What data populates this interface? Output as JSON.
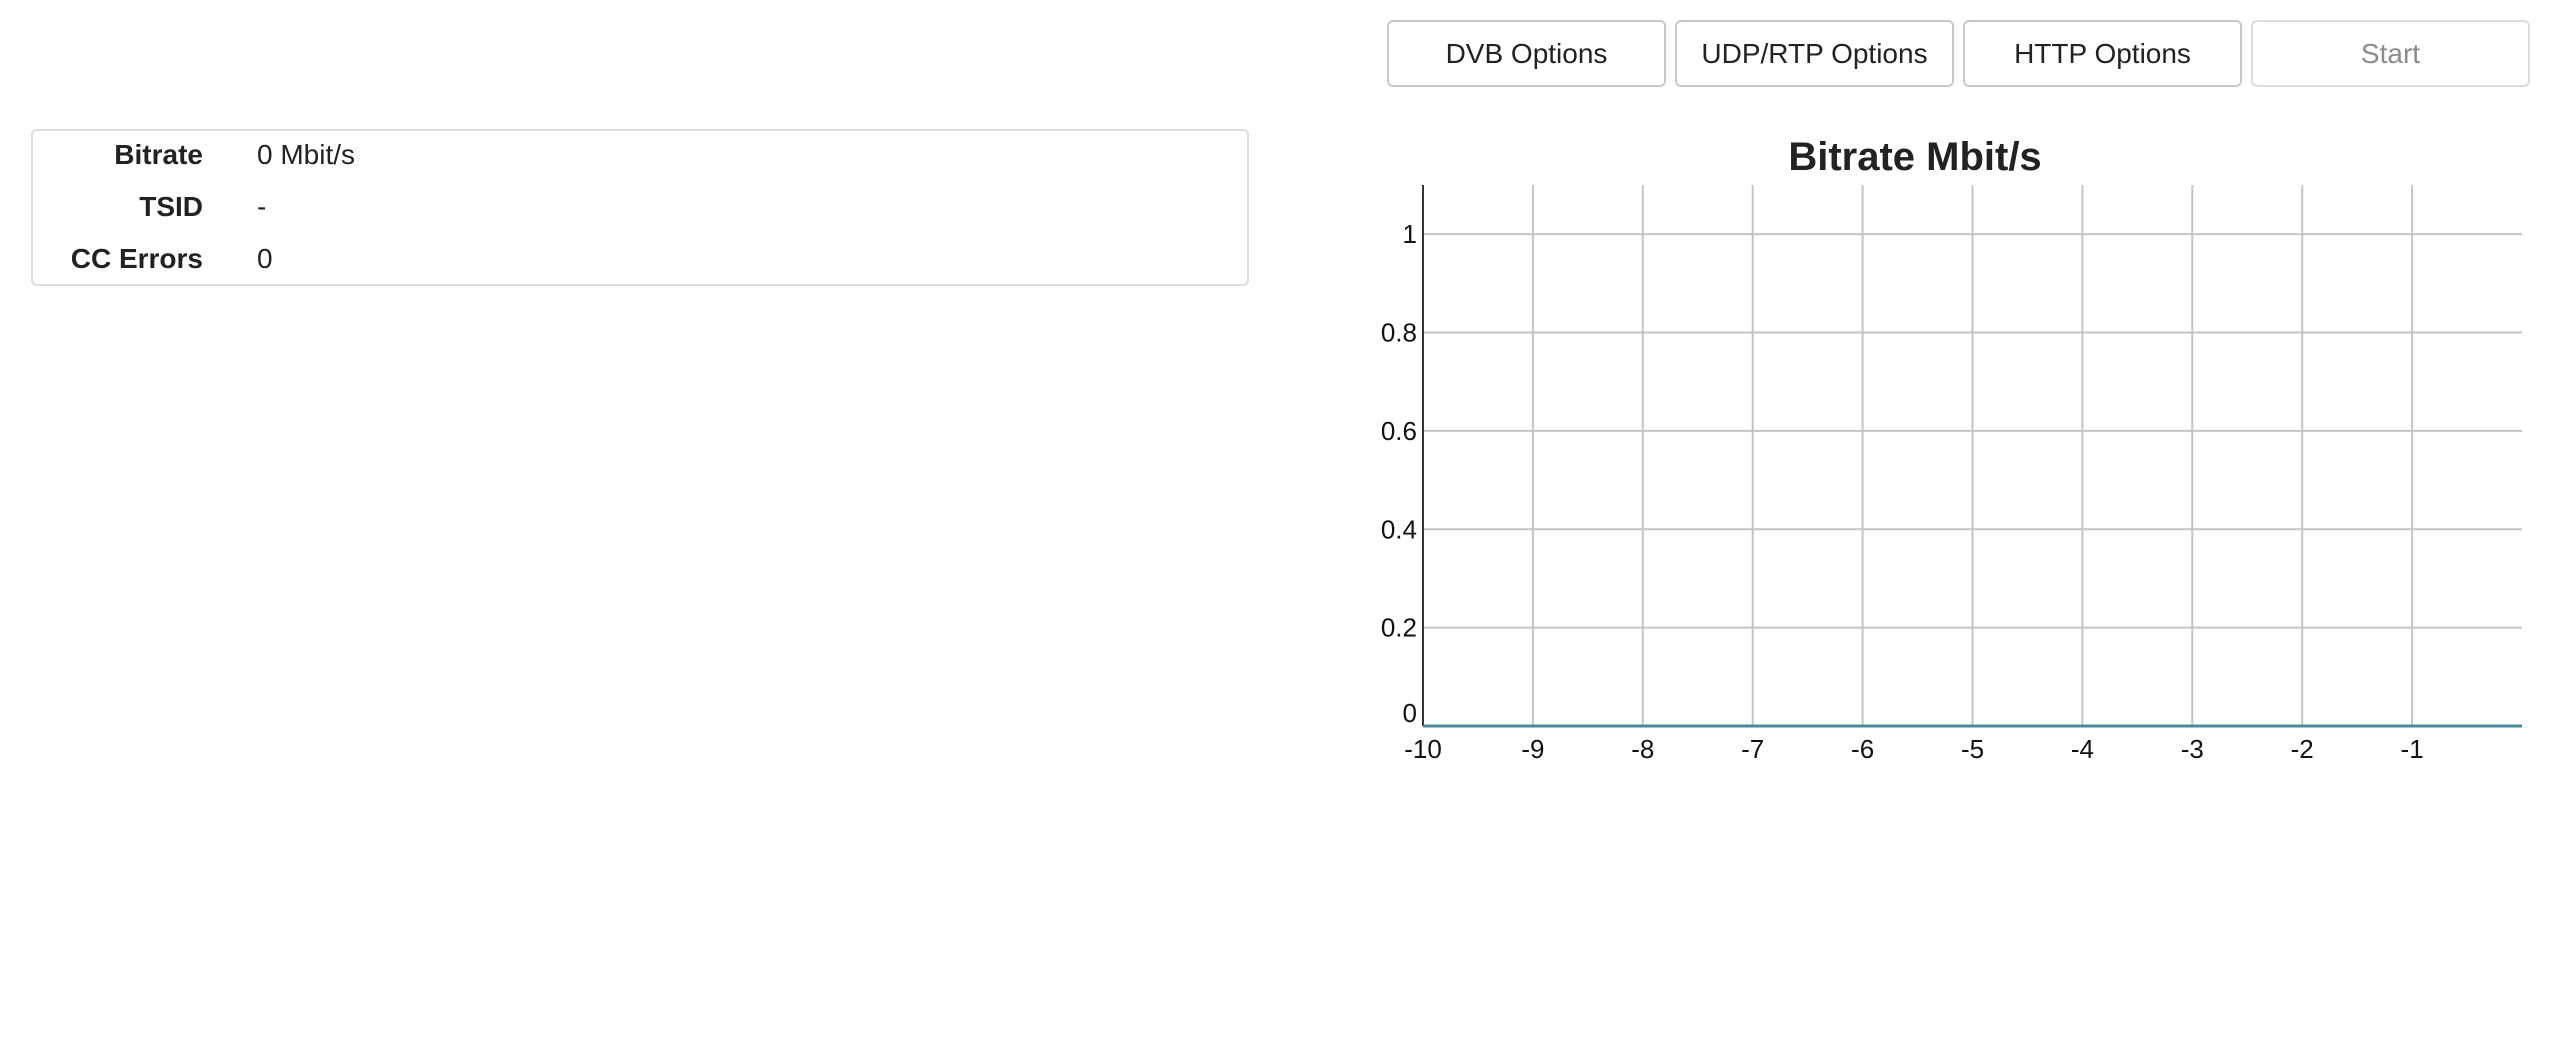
{
  "toolbar": {
    "dvb_label": "DVB Options",
    "udp_label": "UDP/RTP Options",
    "http_label": "HTTP Options",
    "start_label": "Start"
  },
  "stats": {
    "bitrate_label": "Bitrate",
    "bitrate_value": "0 Mbit/s",
    "tsid_label": "TSID",
    "tsid_value": "-",
    "cc_label": "CC Errors",
    "cc_value": "0"
  },
  "colors": {
    "grid": "#c4c4c4",
    "axis": "#333333",
    "series_line": "#4a8a9a",
    "button_border": "#c8c8c8",
    "disabled_text": "#8a8a8a"
  },
  "chart_data": {
    "type": "line",
    "title": "Bitrate Mbit/s",
    "xlabel": "",
    "ylabel": "",
    "x": [
      -10,
      -9,
      -8,
      -7,
      -6,
      -5,
      -4,
      -3,
      -2,
      -1,
      0
    ],
    "series": [
      {
        "values": [
          0,
          0,
          0,
          0,
          0,
          0,
          0,
          0,
          0,
          0,
          0
        ]
      }
    ],
    "xlim": [
      -10,
      0
    ],
    "ylim": [
      0,
      1.1
    ],
    "xticks": [
      "-10",
      "-9",
      "-8",
      "-7",
      "-6",
      "-5",
      "-4",
      "-3",
      "-2",
      "-1"
    ],
    "yticks": [
      "0",
      "0.2",
      "0.4",
      "0.6",
      "0.8",
      "1"
    ],
    "grid": true,
    "legend": "none"
  }
}
